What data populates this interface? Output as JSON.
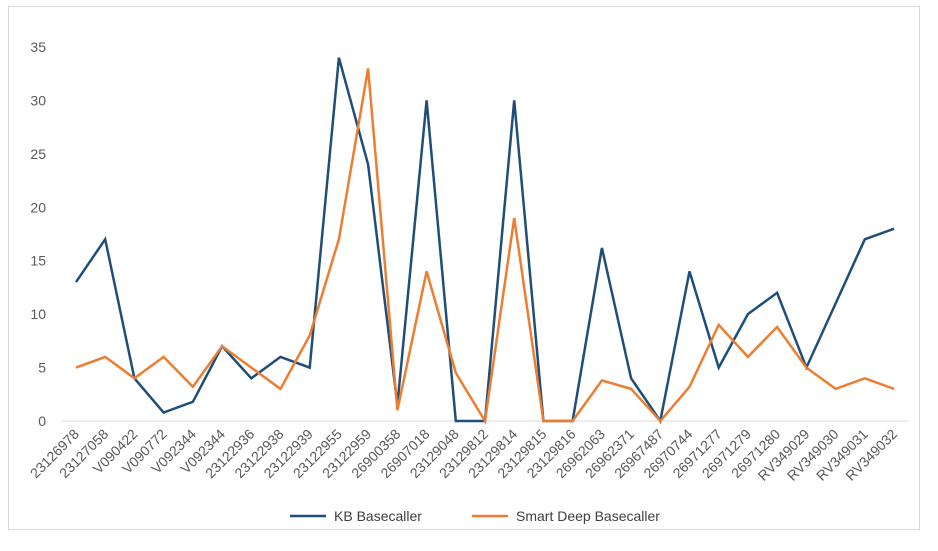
{
  "chart_data": {
    "type": "line",
    "title": "",
    "xlabel": "",
    "ylabel": "",
    "ylim": [
      0,
      35
    ],
    "yticks": [
      0,
      5,
      10,
      15,
      20,
      25,
      30,
      35
    ],
    "grid": false,
    "legend_position": "bottom",
    "categories": [
      "23126978",
      "23127058",
      "V090422",
      "V090772",
      "V092344",
      "V092344",
      "23122936",
      "23122938",
      "23122939",
      "23122955",
      "23122959",
      "26900358",
      "26907018",
      "23129048",
      "23129812",
      "23129814",
      "23129815",
      "23129816",
      "26962063",
      "26962371",
      "26967487",
      "26970744",
      "26971277",
      "26971279",
      "26971280",
      "RV349029",
      "RV349030",
      "RV349031",
      "RV349032"
    ],
    "series": [
      {
        "name": "KB Basecaller",
        "color": "#1f4e79",
        "values": [
          13,
          17,
          4,
          0.8,
          1.8,
          7,
          4,
          6,
          5,
          34,
          24,
          1.5,
          30,
          0,
          0,
          30,
          0,
          0,
          16.2,
          4,
          0,
          14,
          5,
          10,
          12,
          5,
          11,
          17,
          18
        ]
      },
      {
        "name": "Smart Deep Basecaller",
        "color": "#ed7d31",
        "values": [
          5,
          6,
          4,
          6,
          3.2,
          7,
          5,
          3,
          8,
          17,
          33,
          1,
          14,
          4.5,
          0,
          19,
          0,
          0,
          3.8,
          3,
          0,
          3.2,
          9,
          6,
          8.8,
          5,
          3,
          4,
          3
        ]
      }
    ]
  }
}
